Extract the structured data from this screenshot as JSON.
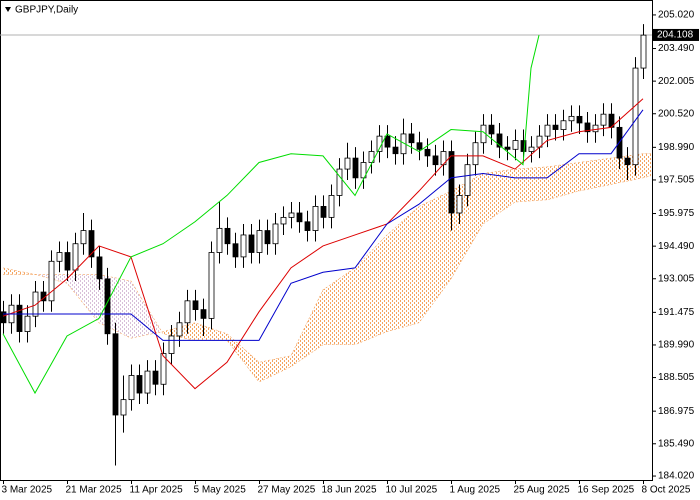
{
  "chart_data": {
    "type": "candlestick",
    "title": "GBPJPY,Daily",
    "x": [
      0,
      2,
      4,
      6,
      8,
      10,
      12,
      14,
      16,
      18,
      20,
      22,
      24,
      26,
      28,
      30,
      32,
      34,
      36,
      38,
      40,
      42,
      44,
      46,
      48,
      50,
      52,
      54,
      56,
      58,
      60,
      62,
      64,
      66,
      68,
      70,
      72,
      74,
      76,
      78,
      80,
      82,
      84,
      86,
      88,
      90,
      92,
      94,
      96,
      98,
      100,
      102,
      104,
      106,
      108,
      110,
      112,
      114,
      116,
      118,
      120,
      122,
      124,
      126,
      128,
      130,
      132,
      134,
      136,
      138,
      140,
      142,
      144,
      146,
      148,
      150,
      152,
      154,
      156,
      158,
      160
    ],
    "open": [
      191.5,
      191.0,
      191.8,
      190.6,
      191.3,
      192.4,
      192.0,
      193.8,
      194.2,
      193.4,
      194.6,
      195.2,
      194.0,
      193.0,
      190.5,
      186.8,
      187.5,
      188.6,
      187.8,
      188.8,
      188.2,
      189.6,
      190.4,
      191.0,
      192.0,
      191.6,
      191.2,
      194.2,
      195.3,
      194.6,
      194.0,
      195.0,
      194.2,
      195.2,
      194.6,
      195.5,
      195.8,
      196.0,
      195.6,
      195.2,
      196.3,
      195.8,
      196.8,
      198.0,
      198.5,
      197.6,
      198.3,
      198.8,
      199.5,
      199.0,
      198.7,
      199.6,
      199.2,
      198.9,
      198.6,
      198.2,
      198.8,
      196.0,
      196.8,
      198.2,
      199.2,
      200.0,
      199.6,
      199.0,
      198.9,
      199.3,
      198.8,
      199.0,
      199.5,
      200.0,
      199.8,
      200.2,
      200.4,
      200.1,
      199.7,
      200.0,
      200.5,
      199.9,
      198.5,
      198.2,
      202.6
    ],
    "high": [
      192.0,
      192.3,
      192.3,
      191.8,
      192.9,
      192.9,
      194.3,
      194.7,
      194.7,
      195.1,
      196.0,
      195.7,
      194.5,
      193.5,
      191.0,
      188.6,
      189.1,
      189.1,
      189.3,
      189.3,
      190.1,
      190.9,
      191.5,
      192.5,
      192.5,
      192.1,
      194.7,
      196.5,
      195.8,
      195.1,
      195.5,
      195.5,
      195.7,
      195.7,
      196.0,
      196.3,
      196.5,
      196.5,
      196.1,
      196.8,
      196.8,
      197.3,
      198.5,
      199.2,
      199.0,
      198.8,
      199.3,
      200.0,
      200.0,
      199.5,
      200.3,
      200.1,
      199.7,
      199.4,
      199.1,
      199.3,
      199.3,
      197.3,
      198.7,
      199.7,
      200.5,
      200.5,
      200.1,
      199.5,
      199.8,
      199.8,
      199.5,
      200.0,
      200.5,
      200.5,
      200.7,
      200.9,
      200.9,
      200.6,
      200.5,
      201.0,
      201.0,
      200.4,
      199.0,
      203.1,
      204.6
    ],
    "low": [
      190.5,
      190.5,
      190.1,
      190.1,
      190.8,
      191.5,
      191.5,
      193.3,
      192.9,
      192.9,
      194.1,
      193.5,
      192.5,
      190.0,
      184.5,
      186.0,
      187.0,
      187.3,
      187.3,
      187.7,
      187.7,
      189.1,
      189.9,
      190.5,
      191.1,
      190.4,
      190.7,
      193.7,
      194.1,
      193.5,
      193.5,
      193.7,
      193.7,
      194.1,
      194.1,
      195.0,
      195.3,
      195.1,
      194.7,
      194.7,
      195.3,
      195.3,
      196.3,
      197.5,
      197.1,
      197.1,
      197.8,
      198.3,
      198.5,
      198.2,
      198.2,
      198.7,
      198.4,
      198.1,
      197.7,
      197.7,
      195.2,
      195.5,
      196.3,
      197.7,
      198.7,
      199.1,
      198.5,
      198.4,
      198.4,
      198.3,
      198.3,
      198.5,
      199.0,
      199.3,
      199.3,
      199.7,
      199.6,
      199.2,
      199.2,
      199.5,
      199.4,
      198.0,
      197.5,
      197.7,
      202.1
    ],
    "close": [
      191.0,
      191.8,
      190.6,
      191.3,
      192.4,
      192.0,
      193.8,
      194.2,
      193.4,
      194.6,
      195.2,
      194.0,
      193.0,
      190.5,
      186.8,
      187.5,
      188.6,
      187.8,
      188.8,
      188.2,
      189.6,
      190.4,
      191.0,
      192.0,
      191.6,
      191.2,
      194.2,
      195.3,
      194.6,
      194.0,
      195.0,
      194.2,
      195.2,
      194.6,
      195.5,
      195.8,
      196.0,
      195.6,
      195.2,
      196.3,
      195.8,
      196.8,
      198.0,
      198.5,
      197.6,
      198.3,
      198.8,
      199.5,
      199.0,
      198.7,
      199.6,
      199.2,
      198.9,
      198.6,
      198.2,
      198.8,
      196.0,
      196.8,
      198.2,
      199.2,
      200.0,
      199.6,
      199.0,
      198.9,
      199.3,
      198.8,
      199.0,
      199.5,
      200.0,
      199.8,
      200.2,
      200.4,
      200.1,
      199.7,
      200.0,
      200.5,
      199.9,
      198.5,
      198.2,
      202.6,
      204.1
    ],
    "up_color": "#ffffff",
    "down_color": "#000000",
    "outline_color": "#000000",
    "lines": [
      {
        "color": "#dd0000",
        "x": [
          0,
          8,
          16,
          24,
          32,
          40,
          48,
          56,
          64,
          72,
          80,
          88,
          96,
          104,
          112,
          120,
          128,
          136,
          144,
          152,
          160
        ],
        "values": [
          191.3,
          191.8,
          193.0,
          194.5,
          194.0,
          189.5,
          188.0,
          189.2,
          191.5,
          193.5,
          194.5,
          195.0,
          195.5,
          197.0,
          198.6,
          198.6,
          198.0,
          199.3,
          199.7,
          199.9,
          201.2
        ]
      },
      {
        "color": "#0000cc",
        "x": [
          0,
          8,
          16,
          24,
          32,
          40,
          48,
          56,
          64,
          72,
          80,
          88,
          96,
          104,
          112,
          120,
          128,
          136,
          144,
          152,
          160
        ],
        "values": [
          191.4,
          191.4,
          191.4,
          191.4,
          191.4,
          190.2,
          190.2,
          190.2,
          190.2,
          192.8,
          193.3,
          193.5,
          195.5,
          196.4,
          197.6,
          197.8,
          197.6,
          197.6,
          198.7,
          198.7,
          200.7
        ]
      },
      {
        "color": "#00dd00",
        "x": [
          0,
          8,
          16,
          24,
          32,
          40,
          48,
          56,
          64,
          72,
          80,
          88,
          96,
          104,
          112,
          120,
          128,
          130,
          132,
          134
        ],
        "values": [
          190.5,
          187.8,
          190.4,
          191.2,
          194.0,
          194.6,
          195.6,
          196.8,
          198.3,
          198.7,
          198.6,
          196.8,
          199.6,
          198.8,
          199.8,
          199.7,
          198.5,
          198.2,
          202.6,
          204.1
        ]
      }
    ],
    "cloud": {
      "x": [
        0,
        8,
        16,
        24,
        32,
        40,
        48,
        56,
        64,
        72,
        80,
        88,
        96,
        104,
        112,
        120,
        128,
        136,
        144,
        152,
        160,
        162
      ],
      "span_a": [
        193.5,
        193.2,
        192.8,
        191.0,
        190.3,
        190.6,
        191.0,
        190.5,
        189.2,
        189.5,
        192.5,
        193.5,
        195.0,
        196.3,
        197.0,
        197.8,
        198.0,
        198.1,
        198.3,
        198.5,
        198.7,
        198.7
      ],
      "span_b": [
        193.2,
        193.2,
        193.2,
        193.2,
        192.9,
        190.5,
        190.2,
        190.2,
        188.3,
        189.0,
        190.0,
        190.0,
        190.6,
        191.0,
        193.0,
        195.5,
        196.5,
        196.6,
        197.0,
        197.3,
        197.6,
        197.7
      ],
      "up_color": "#f4a460",
      "down_color": "#d8bfd8"
    },
    "last_price": 204.108,
    "xlim": [
      -0.75,
      162.25
    ],
    "xticks": [
      {
        "value": 0,
        "label": "3 Mar 2025"
      },
      {
        "value": 16,
        "label": "21 Mar 2025"
      },
      {
        "value": 32,
        "label": "11 Apr 2025"
      },
      {
        "value": 48,
        "label": "5 May 2025"
      },
      {
        "value": 64,
        "label": "27 May 2025"
      },
      {
        "value": 80,
        "label": "18 Jun 2025"
      },
      {
        "value": 96,
        "label": "10 Jul 2025"
      },
      {
        "value": 112,
        "label": "1 Aug 2025"
      },
      {
        "value": 128,
        "label": "25 Aug 2025"
      },
      {
        "value": 144,
        "label": "16 Sep 2025"
      },
      {
        "value": 160,
        "label": "8 Oct 2025"
      }
    ],
    "ylim": [
      183.84,
      205.7
    ],
    "yticks": [
      {
        "value": 205.02,
        "label": "205.020"
      },
      {
        "value": 203.49,
        "label": "203.490"
      },
      202.005,
      {
        "value": 200.52,
        "label": "200.520"
      },
      {
        "value": 198.99,
        "label": "198.990"
      },
      197.505,
      195.975,
      {
        "value": 194.49,
        "label": "194.490"
      },
      193.005,
      191.475,
      {
        "value": 189.99,
        "label": "189.990"
      },
      188.505,
      186.975,
      {
        "value": 185.49,
        "label": "185.490"
      },
      {
        "value": 184.02,
        "label": "184.020"
      }
    ]
  }
}
